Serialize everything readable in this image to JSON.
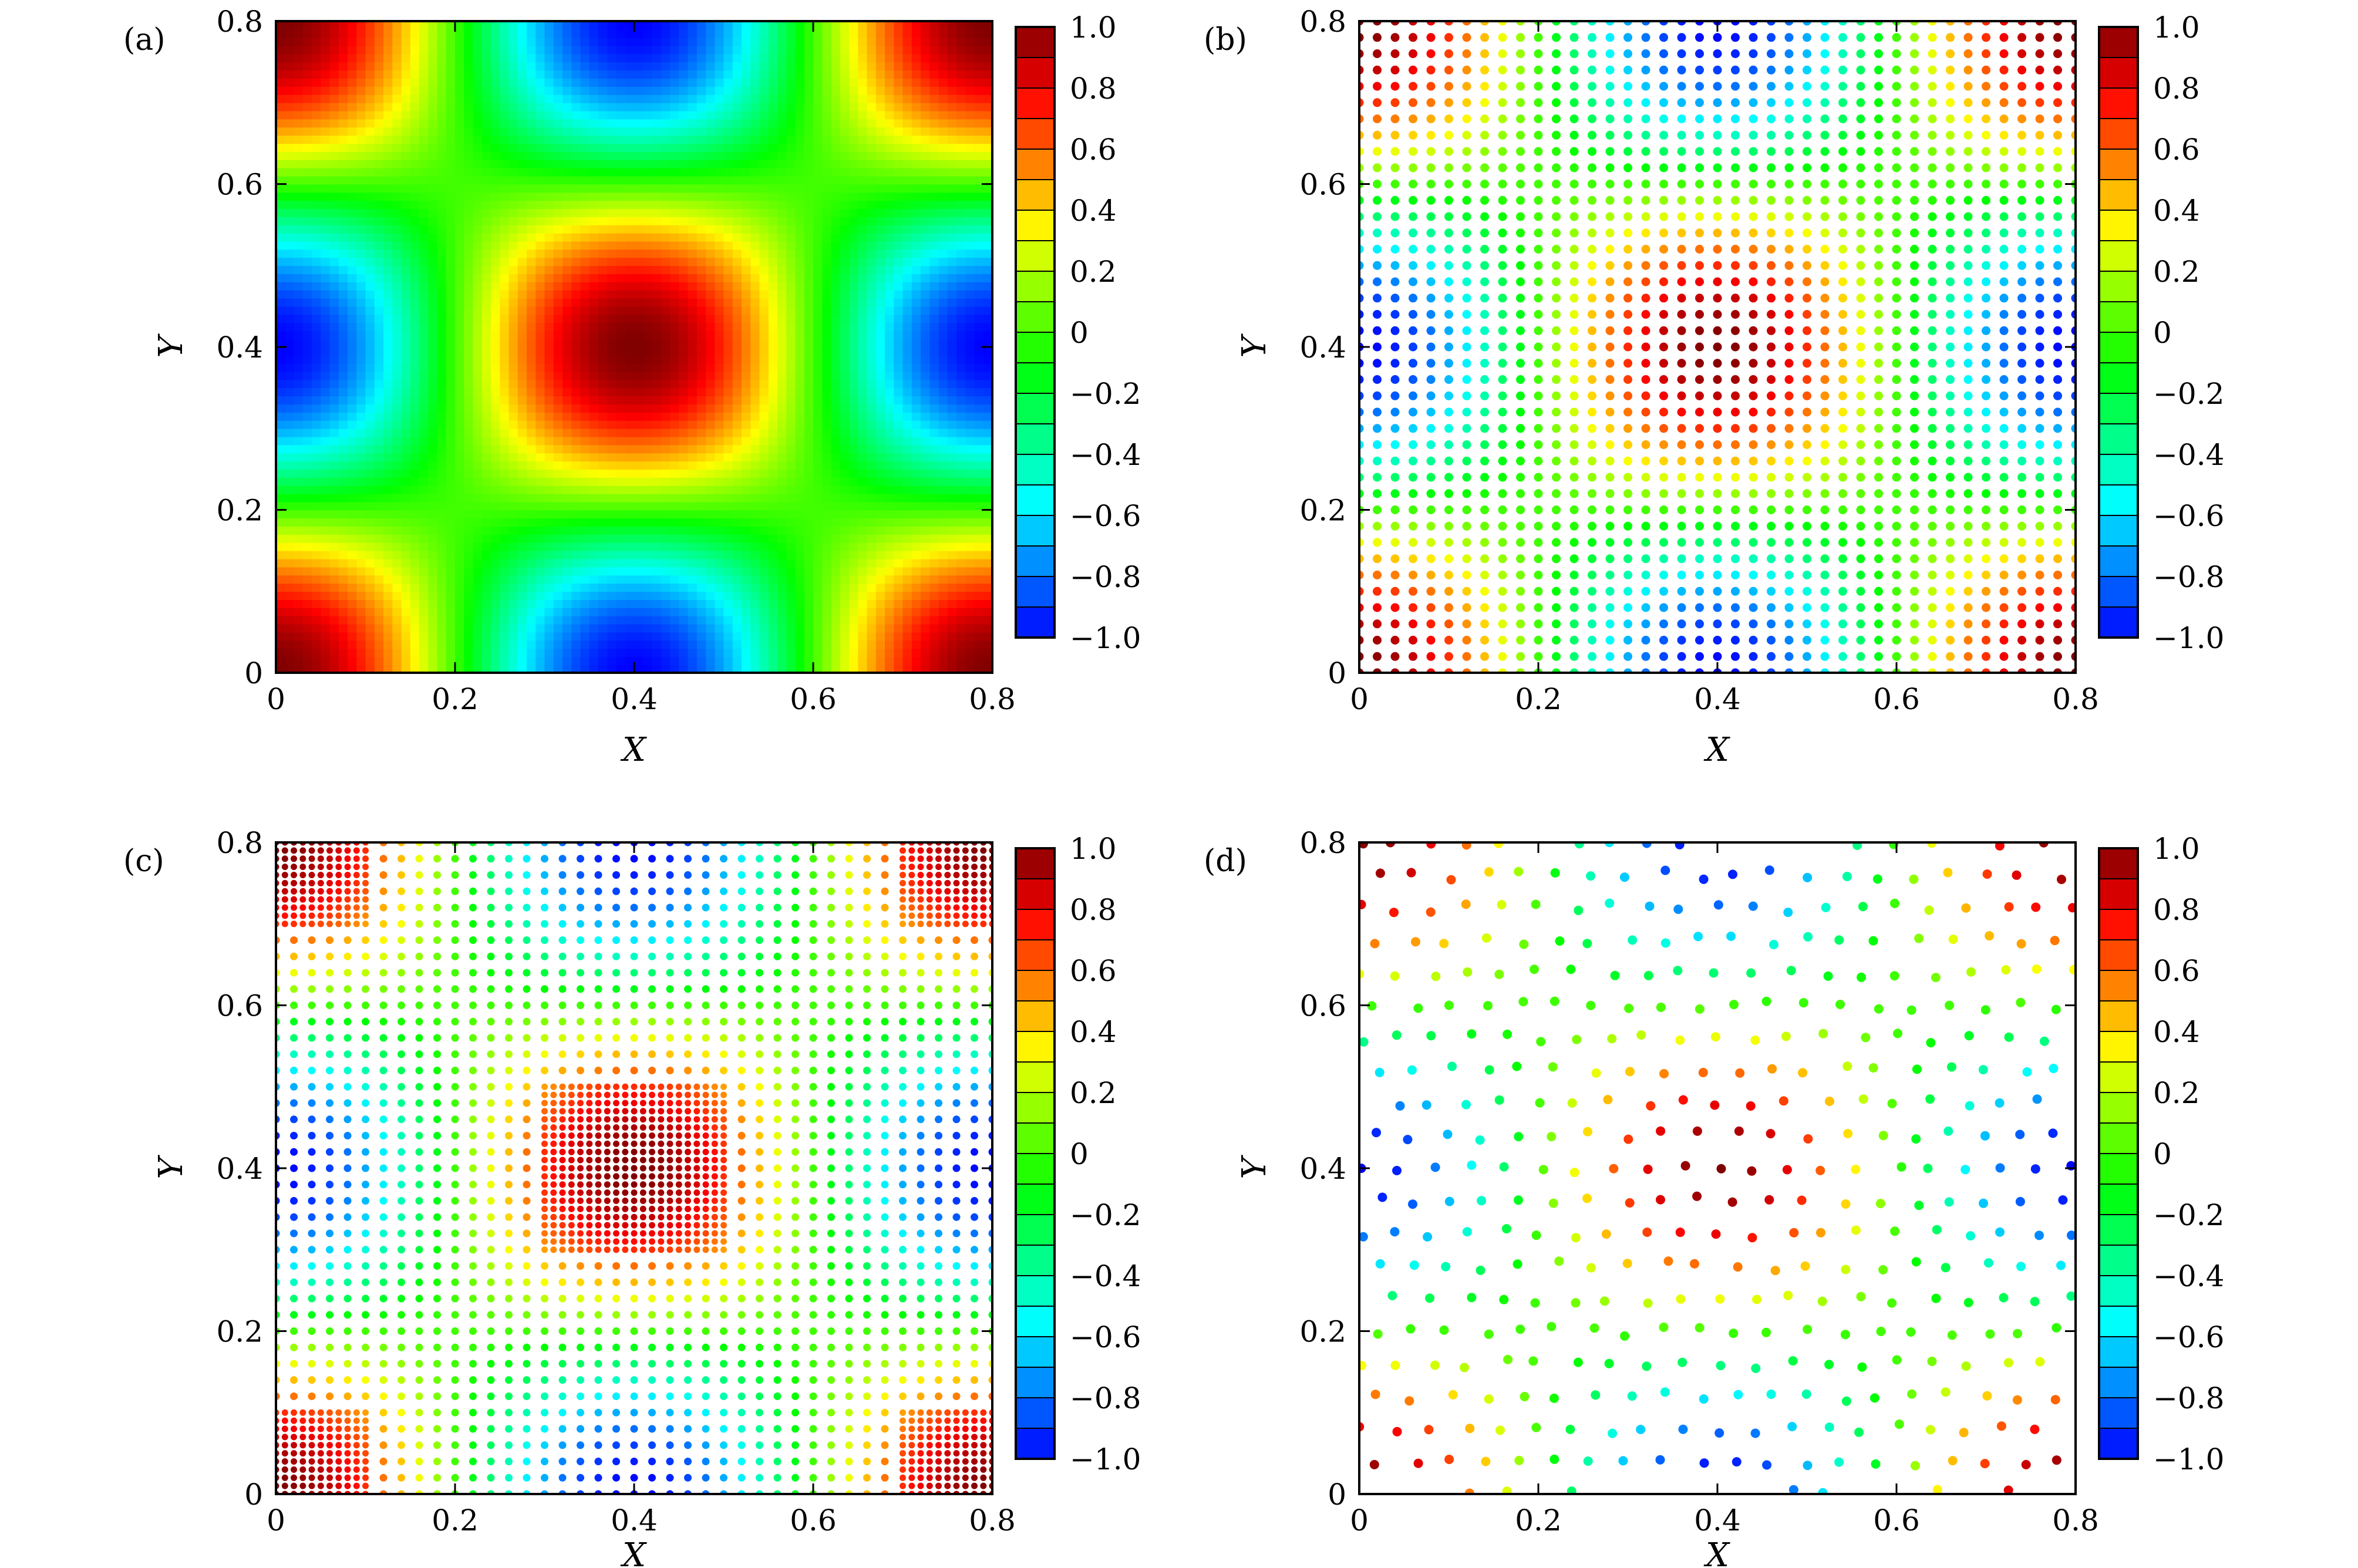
{
  "figure": {
    "panels": [
      "a",
      "b",
      "c",
      "d"
    ]
  },
  "colormap": [
    "#0000ff",
    "#0080ff",
    "#00ffff",
    "#00ff80",
    "#00ff00",
    "#80ff00",
    "#ffff00",
    "#ff8000",
    "#ff0000",
    "#800000"
  ],
  "chart_data": [
    {
      "panel": "(a)",
      "type": "heatmap",
      "title": "",
      "xlabel": "X",
      "ylabel": "Y",
      "xlim": [
        0,
        0.8
      ],
      "ylim": [
        0,
        0.8
      ],
      "xticks": [
        "0",
        "0.2",
        "0.4",
        "0.6",
        "0.8"
      ],
      "yticks": [
        "0",
        "0.2",
        "0.4",
        "0.6",
        "0.8"
      ],
      "field": "f(x,y) = sin(2.5*pi*(x+0.2)) * sin(2.5*pi*(y+0.2)), clipped to [-1, 1]",
      "colorbar": {
        "range": [
          -1.0,
          1.0
        ],
        "ticks": [
          "1.0",
          "0.8",
          "0.6",
          "0.4",
          "0.2",
          "0",
          "−0.2",
          "−0.4",
          "−0.6",
          "−0.8",
          "−1.0"
        ]
      }
    },
    {
      "panel": "(b)",
      "type": "scatter",
      "title": "",
      "xlabel": "X",
      "ylabel": "Y",
      "xlim": [
        0,
        0.8
      ],
      "ylim": [
        0,
        0.8
      ],
      "xticks": [
        "0",
        "0.2",
        "0.4",
        "0.6",
        "0.8"
      ],
      "yticks": [
        "0",
        "0.2",
        "0.4",
        "0.6",
        "0.8"
      ],
      "layout": "uniform grid, 41 x 41 points, spacing 0.02",
      "field": "same function as (a), evaluated at the points",
      "colorbar": {
        "range": [
          -1.0,
          1.0
        ],
        "ticks": [
          "1.0",
          "0.8",
          "0.6",
          "0.4",
          "0.2",
          "0",
          "−0.2",
          "−0.4",
          "−0.6",
          "−0.8",
          "−1.0"
        ]
      }
    },
    {
      "panel": "(c)",
      "type": "scatter",
      "title": "",
      "xlabel": "X",
      "ylabel": "Y",
      "xlim": [
        0,
        0.8
      ],
      "ylim": [
        0,
        0.8
      ],
      "xticks": [
        "0",
        "0.2",
        "0.4",
        "0.6",
        "0.8"
      ],
      "yticks": [
        "0",
        "0.2",
        "0.4",
        "0.6",
        "0.8"
      ],
      "layout": "uniform grid spacing 0.02 with refined regions (spacing 0.01)",
      "refined_regions": [
        [
          0.0,
          0.1,
          0.0,
          0.1
        ],
        [
          0.7,
          0.8,
          0.0,
          0.1
        ],
        [
          0.0,
          0.1,
          0.7,
          0.8
        ],
        [
          0.7,
          0.8,
          0.7,
          0.8
        ],
        [
          0.3,
          0.5,
          0.3,
          0.5
        ]
      ],
      "field": "same function as (a), evaluated at the points",
      "colorbar": {
        "range": [
          -1.0,
          1.0
        ],
        "ticks": [
          "1.0",
          "0.8",
          "0.6",
          "0.4",
          "0.2",
          "0",
          "−0.2",
          "−0.4",
          "−0.6",
          "−0.8",
          "−1.0"
        ]
      }
    },
    {
      "panel": "(d)",
      "type": "scatter",
      "title": "",
      "xlabel": "X",
      "ylabel": "Y",
      "xlim": [
        0,
        0.8
      ],
      "ylim": [
        0,
        0.8
      ],
      "xticks": [
        "0",
        "0.2",
        "0.4",
        "0.6",
        "0.8"
      ],
      "yticks": [
        "0",
        "0.2",
        "0.4",
        "0.6",
        "0.8"
      ],
      "layout": "scattered quasi-uniform nodes, spacing about 0.04",
      "field": "same function as (a), evaluated at the points",
      "colorbar": {
        "range": [
          -1.0,
          1.0
        ],
        "ticks": [
          "1.0",
          "0.8",
          "0.6",
          "0.4",
          "0.2",
          "0",
          "−0.2",
          "−0.4",
          "−0.6",
          "−0.8",
          "−1.0"
        ]
      }
    }
  ]
}
